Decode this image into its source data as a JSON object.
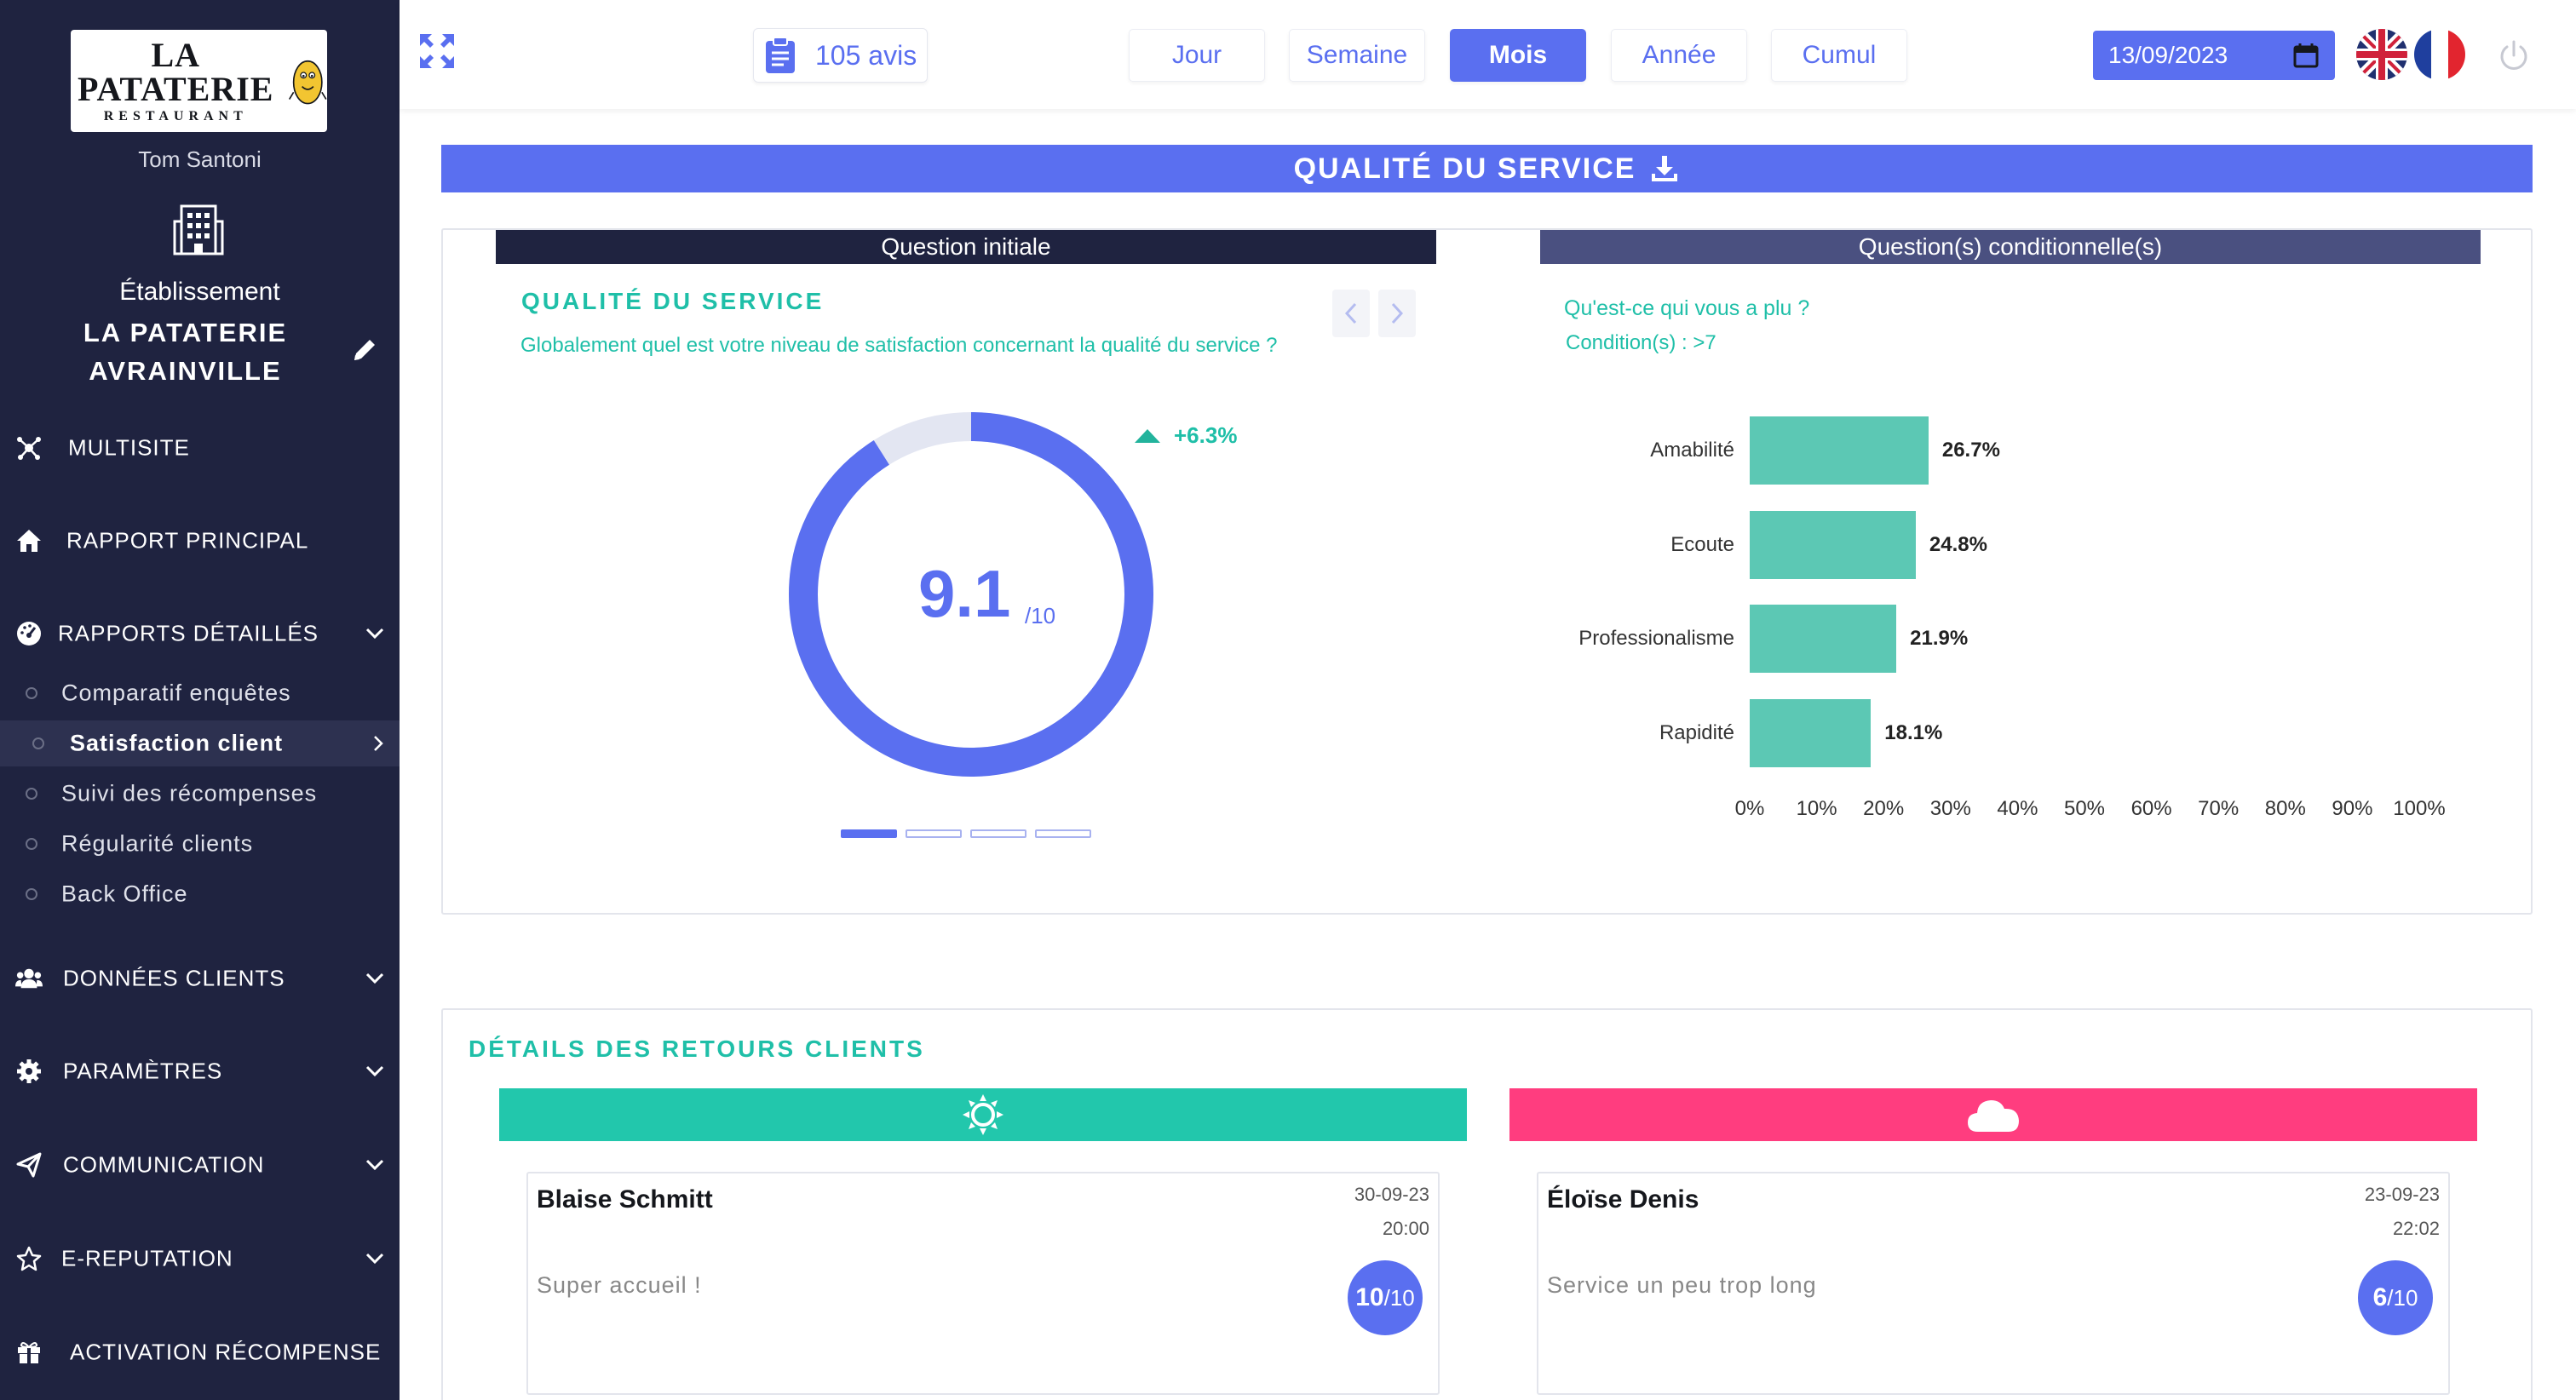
{
  "sidebar": {
    "logo": {
      "line1": "LA PATATERIE",
      "line2": "RESTAURANT"
    },
    "user_name": "Tom Santoni",
    "establishment_label": "Établissement",
    "establishment_name": "LA PATATERIE AVRAINVILLE",
    "nav": [
      {
        "label": "MULTISITE",
        "icon": "network-icon",
        "has_chevron": false
      },
      {
        "label": "RAPPORT PRINCIPAL",
        "icon": "home-icon",
        "has_chevron": false
      },
      {
        "label": "RAPPORTS DÉTAILLÉS",
        "icon": "dashboard-icon",
        "has_chevron": true
      },
      {
        "label": "DONNÉES CLIENTS",
        "icon": "users-icon",
        "has_chevron": true
      },
      {
        "label": "PARAMÈTRES",
        "icon": "gear-icon",
        "has_chevron": true
      },
      {
        "label": "COMMUNICATION",
        "icon": "paper-plane-icon",
        "has_chevron": true
      },
      {
        "label": "E-REPUTATION",
        "icon": "star-icon",
        "has_chevron": true
      },
      {
        "label": "ACTIVATION RÉCOMPENSE",
        "icon": "gift-icon",
        "has_chevron": false
      }
    ],
    "sub_items": [
      {
        "label": "Comparatif enquêtes",
        "active": false
      },
      {
        "label": "Satisfaction client",
        "active": true
      },
      {
        "label": "Suivi des récompenses",
        "active": false
      },
      {
        "label": "Régularité clients",
        "active": false
      },
      {
        "label": "Back Office",
        "active": false
      }
    ]
  },
  "topbar": {
    "reviews_count": "105 avis",
    "periods": [
      "Jour",
      "Semaine",
      "Mois",
      "Année",
      "Cumul"
    ],
    "active_period": "Mois",
    "date": "13/09/2023",
    "languages": [
      "en",
      "fr"
    ]
  },
  "section": {
    "title": "QUALITÉ DU SERVICE",
    "initial_header": "Question initiale",
    "conditional_header": "Question(s) conditionnelle(s)",
    "question_title": "QUALITÉ DU SERVICE",
    "question_text": "Globalement quel est votre niveau de satisfaction concernant la qualité du service ?",
    "score": "9.1",
    "score_max": "/10",
    "score_fraction": 0.91,
    "trend": "+6.3%",
    "pager_count": 4,
    "pager_active": 0,
    "conditional_question": "Qu'est-ce qui vous a plu ?",
    "condition": "Condition(s) : >7"
  },
  "chart_data": {
    "type": "bar",
    "orientation": "horizontal",
    "categories": [
      "Amabilité",
      "Ecoute",
      "Professionalisme",
      "Rapidité"
    ],
    "values": [
      26.7,
      24.8,
      21.9,
      18.1
    ],
    "value_labels": [
      "26.7%",
      "24.8%",
      "21.9%",
      "18.1%"
    ],
    "xlim": [
      0,
      100
    ],
    "x_ticks": [
      "0%",
      "10%",
      "20%",
      "30%",
      "40%",
      "50%",
      "60%",
      "70%",
      "80%",
      "90%",
      "100%"
    ],
    "color": "#5cc8b4",
    "grid": false
  },
  "feedback": {
    "title": "DÉTAILS DES RETOURS CLIENTS",
    "positive": {
      "icon": "sun-icon",
      "name": "Blaise Schmitt",
      "date": "30-09-23",
      "time": "20:00",
      "text": "Super accueil !",
      "score": "10",
      "score_max": "/10"
    },
    "negative": {
      "icon": "cloud-icon",
      "name": "Éloïse Denis",
      "date": "23-09-23",
      "time": "22:02",
      "text": "Service un peu trop long",
      "score": "6",
      "score_max": "/10"
    }
  },
  "colors": {
    "sidebar_bg": "#1f2340",
    "accent": "#5a6ff0",
    "teal": "#1fbfa8",
    "bar": "#5cc8b4",
    "positive": "#22c7ac",
    "negative": "#ff3d7f"
  }
}
